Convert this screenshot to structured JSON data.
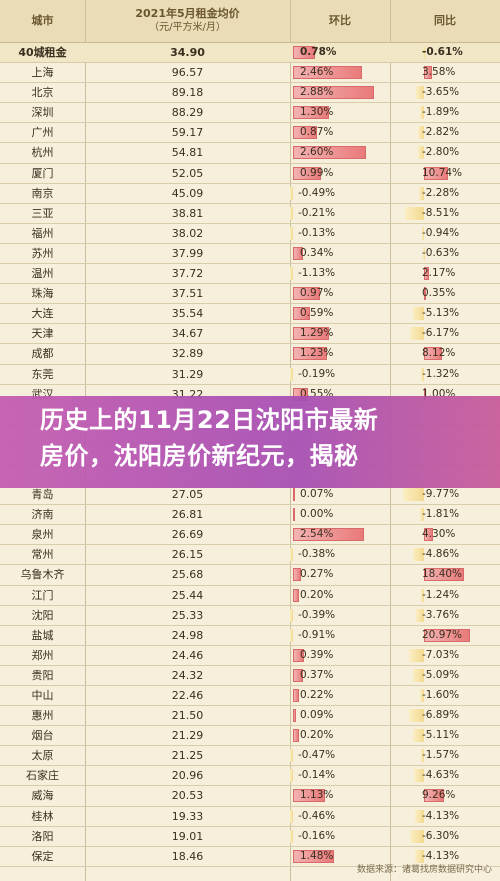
{
  "header": {
    "city": "城市",
    "rent_title": "2021年5月租金均价",
    "rent_unit": "（元/平方米/月）",
    "mom": "环比",
    "yoy": "同比"
  },
  "rows": [
    {
      "city": "40城租金",
      "rent": "34.90",
      "mom": "0.78%",
      "mom_v": 0.78,
      "yoy": "-0.61%",
      "yoy_v": -0.61
    },
    {
      "city": "上海",
      "rent": "96.57",
      "mom": "2.46%",
      "mom_v": 2.46,
      "yoy": "3.58%",
      "yoy_v": 3.58
    },
    {
      "city": "北京",
      "rent": "89.18",
      "mom": "2.88%",
      "mom_v": 2.88,
      "yoy": "-3.65%",
      "yoy_v": -3.65
    },
    {
      "city": "深圳",
      "rent": "88.29",
      "mom": "1.30%",
      "mom_v": 1.3,
      "yoy": "-1.89%",
      "yoy_v": -1.89
    },
    {
      "city": "广州",
      "rent": "59.17",
      "mom": "0.87%",
      "mom_v": 0.87,
      "yoy": "-2.82%",
      "yoy_v": -2.82
    },
    {
      "city": "杭州",
      "rent": "54.81",
      "mom": "2.60%",
      "mom_v": 2.6,
      "yoy": "-2.80%",
      "yoy_v": -2.8
    },
    {
      "city": "厦门",
      "rent": "52.05",
      "mom": "0.99%",
      "mom_v": 0.99,
      "yoy": "10.74%",
      "yoy_v": 10.74
    },
    {
      "city": "南京",
      "rent": "45.09",
      "mom": "-0.49%",
      "mom_v": -0.49,
      "yoy": "-2.28%",
      "yoy_v": -2.28
    },
    {
      "city": "三亚",
      "rent": "38.81",
      "mom": "-0.21%",
      "mom_v": -0.21,
      "yoy": "-8.51%",
      "yoy_v": -8.51
    },
    {
      "city": "福州",
      "rent": "38.02",
      "mom": "-0.13%",
      "mom_v": -0.13,
      "yoy": "-0.94%",
      "yoy_v": -0.94
    },
    {
      "city": "苏州",
      "rent": "37.99",
      "mom": "0.34%",
      "mom_v": 0.34,
      "yoy": "-0.63%",
      "yoy_v": -0.63
    },
    {
      "city": "温州",
      "rent": "37.72",
      "mom": "-1.13%",
      "mom_v": -1.13,
      "yoy": "2.17%",
      "yoy_v": 2.17
    },
    {
      "city": "珠海",
      "rent": "37.51",
      "mom": "0.97%",
      "mom_v": 0.97,
      "yoy": "0.35%",
      "yoy_v": 0.35
    },
    {
      "city": "大连",
      "rent": "35.54",
      "mom": "0.59%",
      "mom_v": 0.59,
      "yoy": "-5.13%",
      "yoy_v": -5.13
    },
    {
      "city": "天津",
      "rent": "34.67",
      "mom": "1.29%",
      "mom_v": 1.29,
      "yoy": "-6.17%",
      "yoy_v": -6.17
    },
    {
      "city": "成都",
      "rent": "32.89",
      "mom": "1.23%",
      "mom_v": 1.23,
      "yoy": "8.12%",
      "yoy_v": 8.12
    },
    {
      "city": "东莞",
      "rent": "31.29",
      "mom": "-0.19%",
      "mom_v": -0.19,
      "yoy": "-1.32%",
      "yoy_v": -1.32
    },
    {
      "city": "武汉",
      "rent": "31.22",
      "mom": "0.55%",
      "mom_v": 0.55,
      "yoy": "1.00%",
      "yoy_v": 1.0
    },
    {
      "city": "",
      "rent": "",
      "mom": "",
      "mom_v": 0,
      "yoy": "",
      "yoy_v": 0
    },
    {
      "city": "",
      "rent": "",
      "mom": "",
      "mom_v": 0,
      "yoy": "",
      "yoy_v": 0
    },
    {
      "city": "",
      "rent": "",
      "mom": "",
      "mom_v": 0,
      "yoy": "",
      "yoy_v": 0
    },
    {
      "city": "",
      "rent": "",
      "mom": "",
      "mom_v": 0,
      "yoy": "",
      "yoy_v": 0
    },
    {
      "city": "青岛",
      "rent": "27.05",
      "mom": "0.07%",
      "mom_v": 0.07,
      "yoy": "-9.77%",
      "yoy_v": -9.77
    },
    {
      "city": "济南",
      "rent": "26.81",
      "mom": "0.00%",
      "mom_v": 0.0,
      "yoy": "-1.81%",
      "yoy_v": -1.81
    },
    {
      "city": "泉州",
      "rent": "26.69",
      "mom": "2.54%",
      "mom_v": 2.54,
      "yoy": "4.30%",
      "yoy_v": 4.3
    },
    {
      "city": "常州",
      "rent": "26.15",
      "mom": "-0.38%",
      "mom_v": -0.38,
      "yoy": "-4.86%",
      "yoy_v": -4.86
    },
    {
      "city": "乌鲁木齐",
      "rent": "25.68",
      "mom": "0.27%",
      "mom_v": 0.27,
      "yoy": "18.40%",
      "yoy_v": 18.4
    },
    {
      "city": "江门",
      "rent": "25.44",
      "mom": "0.20%",
      "mom_v": 0.2,
      "yoy": "-1.24%",
      "yoy_v": -1.24
    },
    {
      "city": "沈阳",
      "rent": "25.33",
      "mom": "-0.39%",
      "mom_v": -0.39,
      "yoy": "-3.76%",
      "yoy_v": -3.76
    },
    {
      "city": "盐城",
      "rent": "24.98",
      "mom": "-0.91%",
      "mom_v": -0.91,
      "yoy": "20.97%",
      "yoy_v": 20.97
    },
    {
      "city": "郑州",
      "rent": "24.46",
      "mom": "0.39%",
      "mom_v": 0.39,
      "yoy": "-7.03%",
      "yoy_v": -7.03
    },
    {
      "city": "贵阳",
      "rent": "24.32",
      "mom": "0.37%",
      "mom_v": 0.37,
      "yoy": "-5.09%",
      "yoy_v": -5.09
    },
    {
      "city": "中山",
      "rent": "22.46",
      "mom": "0.22%",
      "mom_v": 0.22,
      "yoy": "-1.60%",
      "yoy_v": -1.6
    },
    {
      "city": "惠州",
      "rent": "21.50",
      "mom": "0.09%",
      "mom_v": 0.09,
      "yoy": "-6.89%",
      "yoy_v": -6.89
    },
    {
      "city": "烟台",
      "rent": "21.29",
      "mom": "0.20%",
      "mom_v": 0.2,
      "yoy": "-5.11%",
      "yoy_v": -5.11
    },
    {
      "city": "太原",
      "rent": "21.25",
      "mom": "-0.47%",
      "mom_v": -0.47,
      "yoy": "-1.57%",
      "yoy_v": -1.57
    },
    {
      "city": "石家庄",
      "rent": "20.96",
      "mom": "-0.14%",
      "mom_v": -0.14,
      "yoy": "-4.63%",
      "yoy_v": -4.63
    },
    {
      "city": "威海",
      "rent": "20.53",
      "mom": "1.13%",
      "mom_v": 1.13,
      "yoy": "9.26%",
      "yoy_v": 9.26
    },
    {
      "city": "桂林",
      "rent": "19.33",
      "mom": "-0.46%",
      "mom_v": -0.46,
      "yoy": "-4.13%",
      "yoy_v": -4.13
    },
    {
      "city": "洛阳",
      "rent": "19.01",
      "mom": "-0.16%",
      "mom_v": -0.16,
      "yoy": "-6.30%",
      "yoy_v": -6.3
    },
    {
      "city": "保定",
      "rent": "18.46",
      "mom": "1.48%",
      "mom_v": 1.48,
      "yoy": "-4.13%",
      "yoy_v": -4.13
    }
  ],
  "banner": {
    "line1": "历史上的11月22日沈阳市最新",
    "line2": "房价，沈阳房价新纪元，揭秘"
  },
  "watermark": "数据来源：诸葛找房数据研究中心"
}
